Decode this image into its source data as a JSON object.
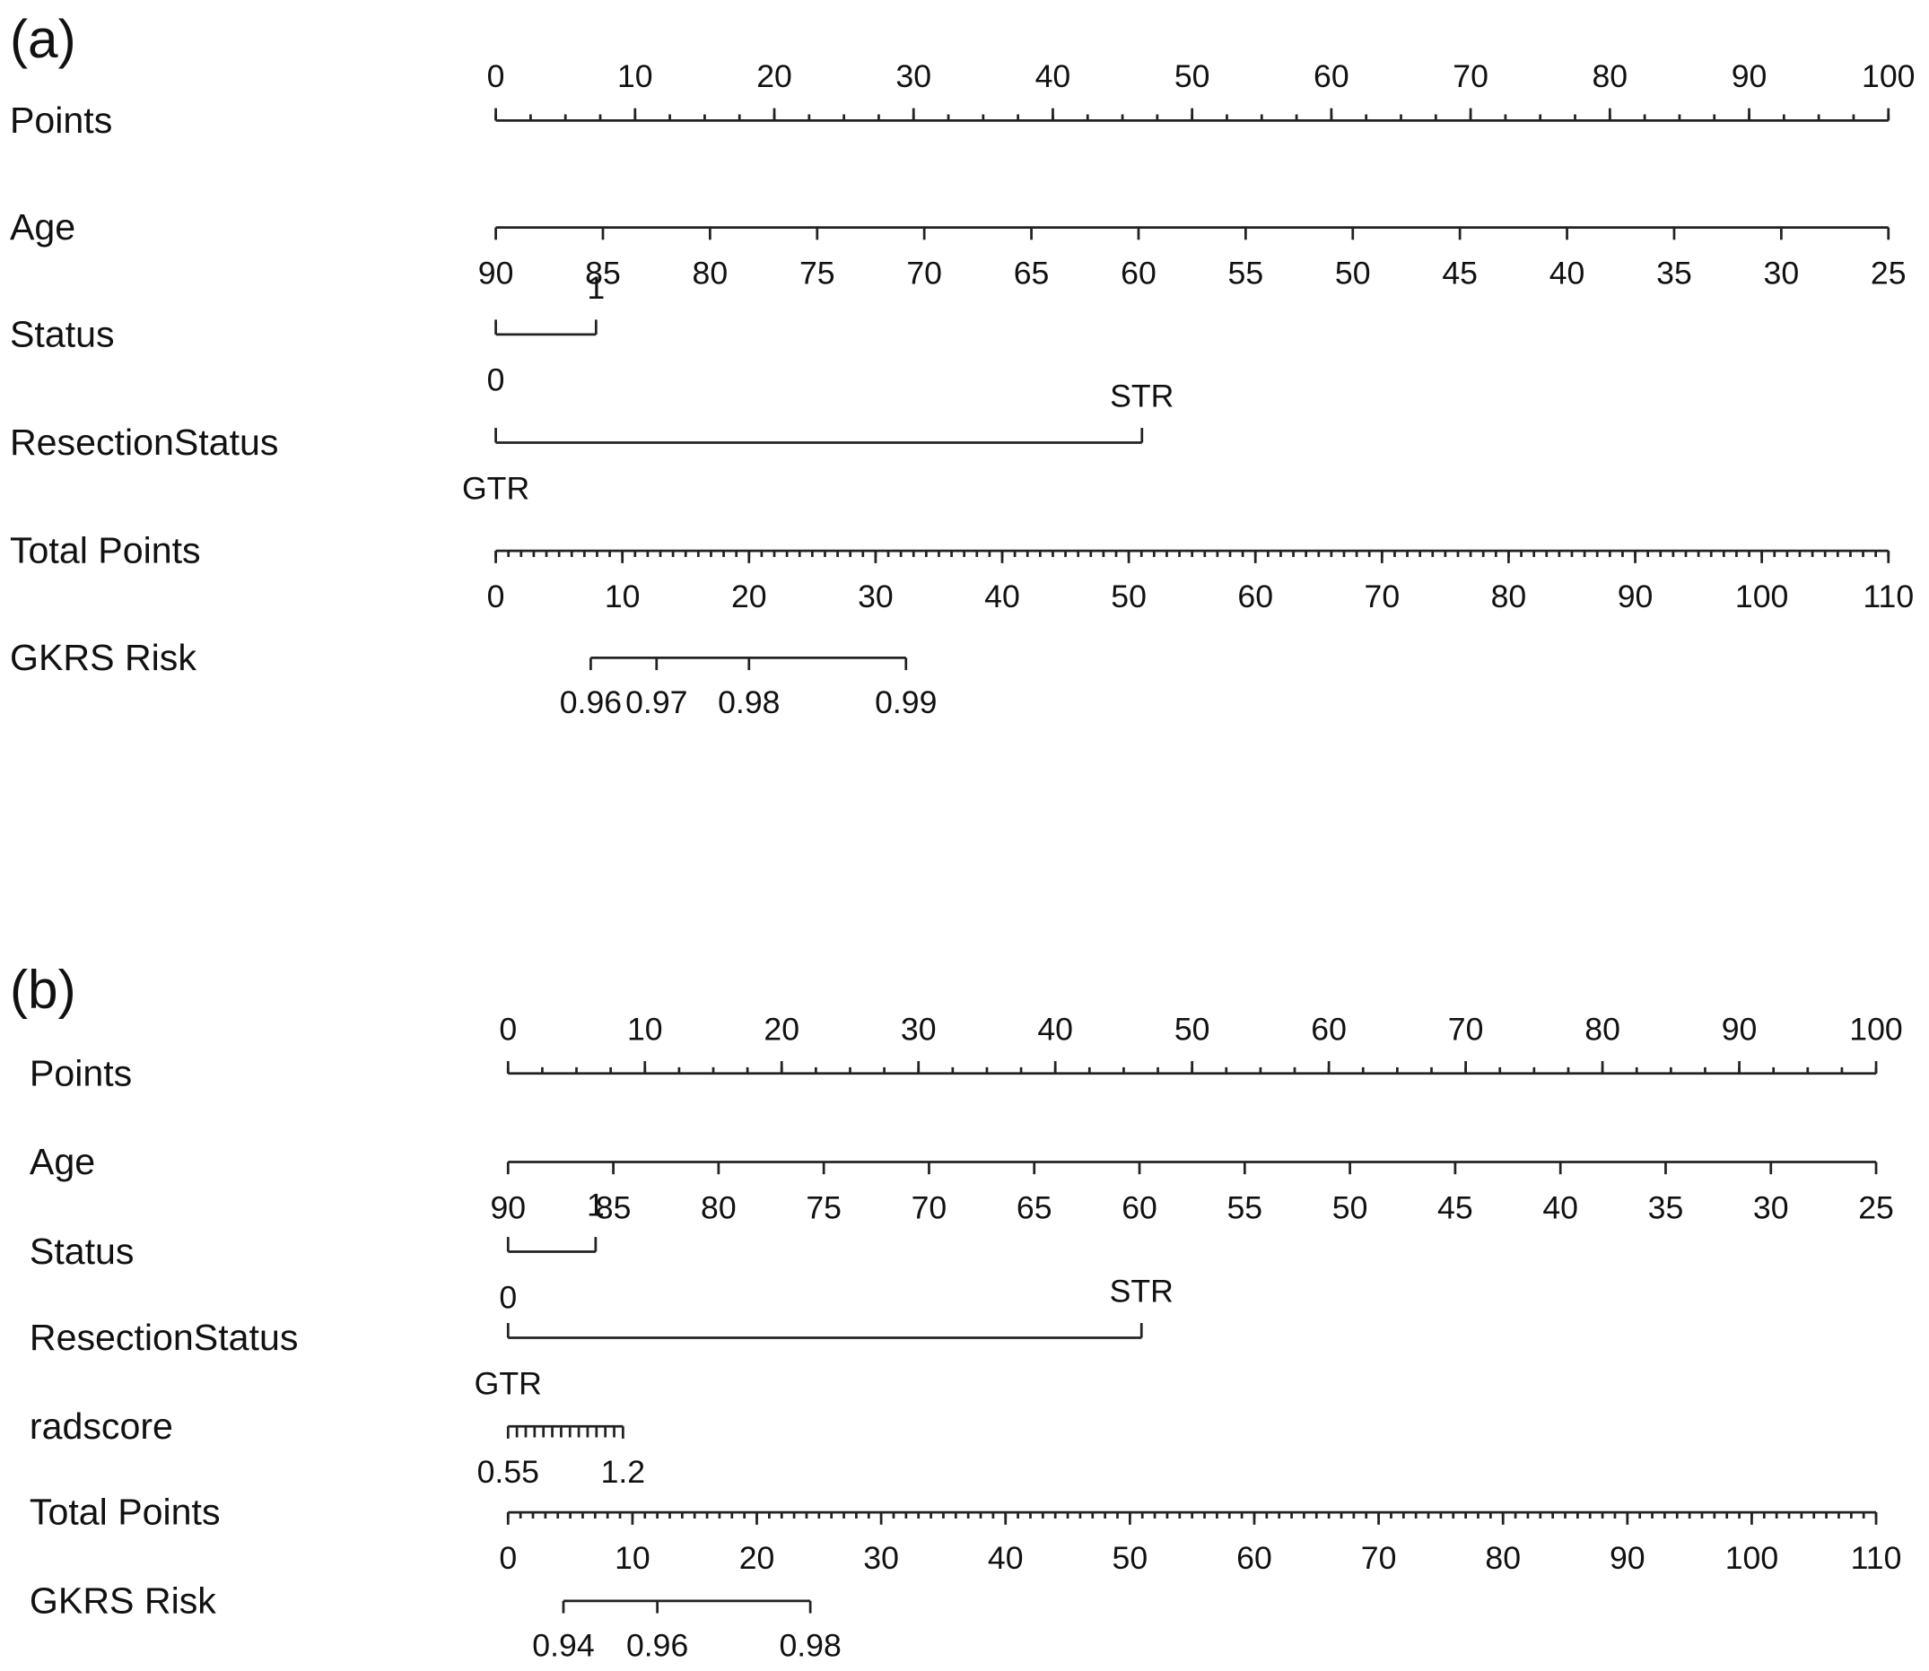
{
  "chart_data": [
    {
      "type": "nomogram",
      "panel": "(a)",
      "rows": [
        {
          "name": "Points",
          "kind": "points",
          "xlim": [
            0,
            100
          ],
          "xticks": [
            0,
            10,
            20,
            30,
            40,
            50,
            60,
            70,
            80,
            90,
            100
          ]
        },
        {
          "name": "Age",
          "kind": "continuous",
          "xlim": [
            90,
            25
          ],
          "points": [
            0,
            100
          ],
          "xticks": [
            90,
            85,
            80,
            75,
            70,
            65,
            60,
            55,
            50,
            45,
            40,
            35,
            30,
            25
          ]
        },
        {
          "name": "Status",
          "kind": "categorical",
          "categories": [
            "0",
            "1"
          ],
          "points": [
            0,
            7.2
          ]
        },
        {
          "name": "ResectionStatus",
          "kind": "categorical",
          "categories": [
            "GTR",
            "STR"
          ],
          "points": [
            0,
            46.4
          ]
        },
        {
          "name": "Total Points",
          "kind": "total",
          "xlim": [
            0,
            110
          ],
          "xticks": [
            0,
            10,
            20,
            30,
            40,
            50,
            60,
            70,
            80,
            90,
            100,
            110
          ]
        },
        {
          "name": "GKRS Risk",
          "kind": "risk",
          "values": [
            0.96,
            0.97,
            0.98,
            0.99
          ],
          "total_points": [
            7.5,
            12.7,
            20.0,
            32.4
          ]
        }
      ]
    },
    {
      "type": "nomogram",
      "panel": "(b)",
      "rows": [
        {
          "name": "Points",
          "kind": "points",
          "xlim": [
            0,
            100
          ],
          "xticks": [
            0,
            10,
            20,
            30,
            40,
            50,
            60,
            70,
            80,
            90,
            100
          ]
        },
        {
          "name": "Age",
          "kind": "continuous",
          "xlim": [
            90,
            25
          ],
          "points": [
            0,
            100
          ],
          "xticks": [
            90,
            85,
            80,
            75,
            70,
            65,
            60,
            55,
            50,
            45,
            40,
            35,
            30,
            25
          ]
        },
        {
          "name": "Status",
          "kind": "categorical",
          "categories": [
            "0",
            "1"
          ],
          "points": [
            0,
            6.4
          ]
        },
        {
          "name": "ResectionStatus",
          "kind": "categorical",
          "categories": [
            "GTR",
            "STR"
          ],
          "points": [
            0,
            46.3
          ]
        },
        {
          "name": "radscore",
          "kind": "continuous",
          "xlim": [
            0.55,
            1.2
          ],
          "points": [
            0,
            8.4
          ],
          "xticks": [
            0.55,
            1.2
          ],
          "minor_ticks": [
            0.6,
            0.65,
            0.7,
            0.75,
            0.8,
            0.85,
            0.9,
            0.95,
            1.0,
            1.05,
            1.1,
            1.15
          ]
        },
        {
          "name": "Total Points",
          "kind": "total",
          "xlim": [
            0,
            110
          ],
          "xticks": [
            0,
            10,
            20,
            30,
            40,
            50,
            60,
            70,
            80,
            90,
            100,
            110
          ]
        },
        {
          "name": "GKRS Risk",
          "kind": "risk",
          "values": [
            0.94,
            0.96,
            0.98
          ],
          "total_points": [
            4.45,
            12.0,
            24.3
          ]
        }
      ]
    }
  ]
}
